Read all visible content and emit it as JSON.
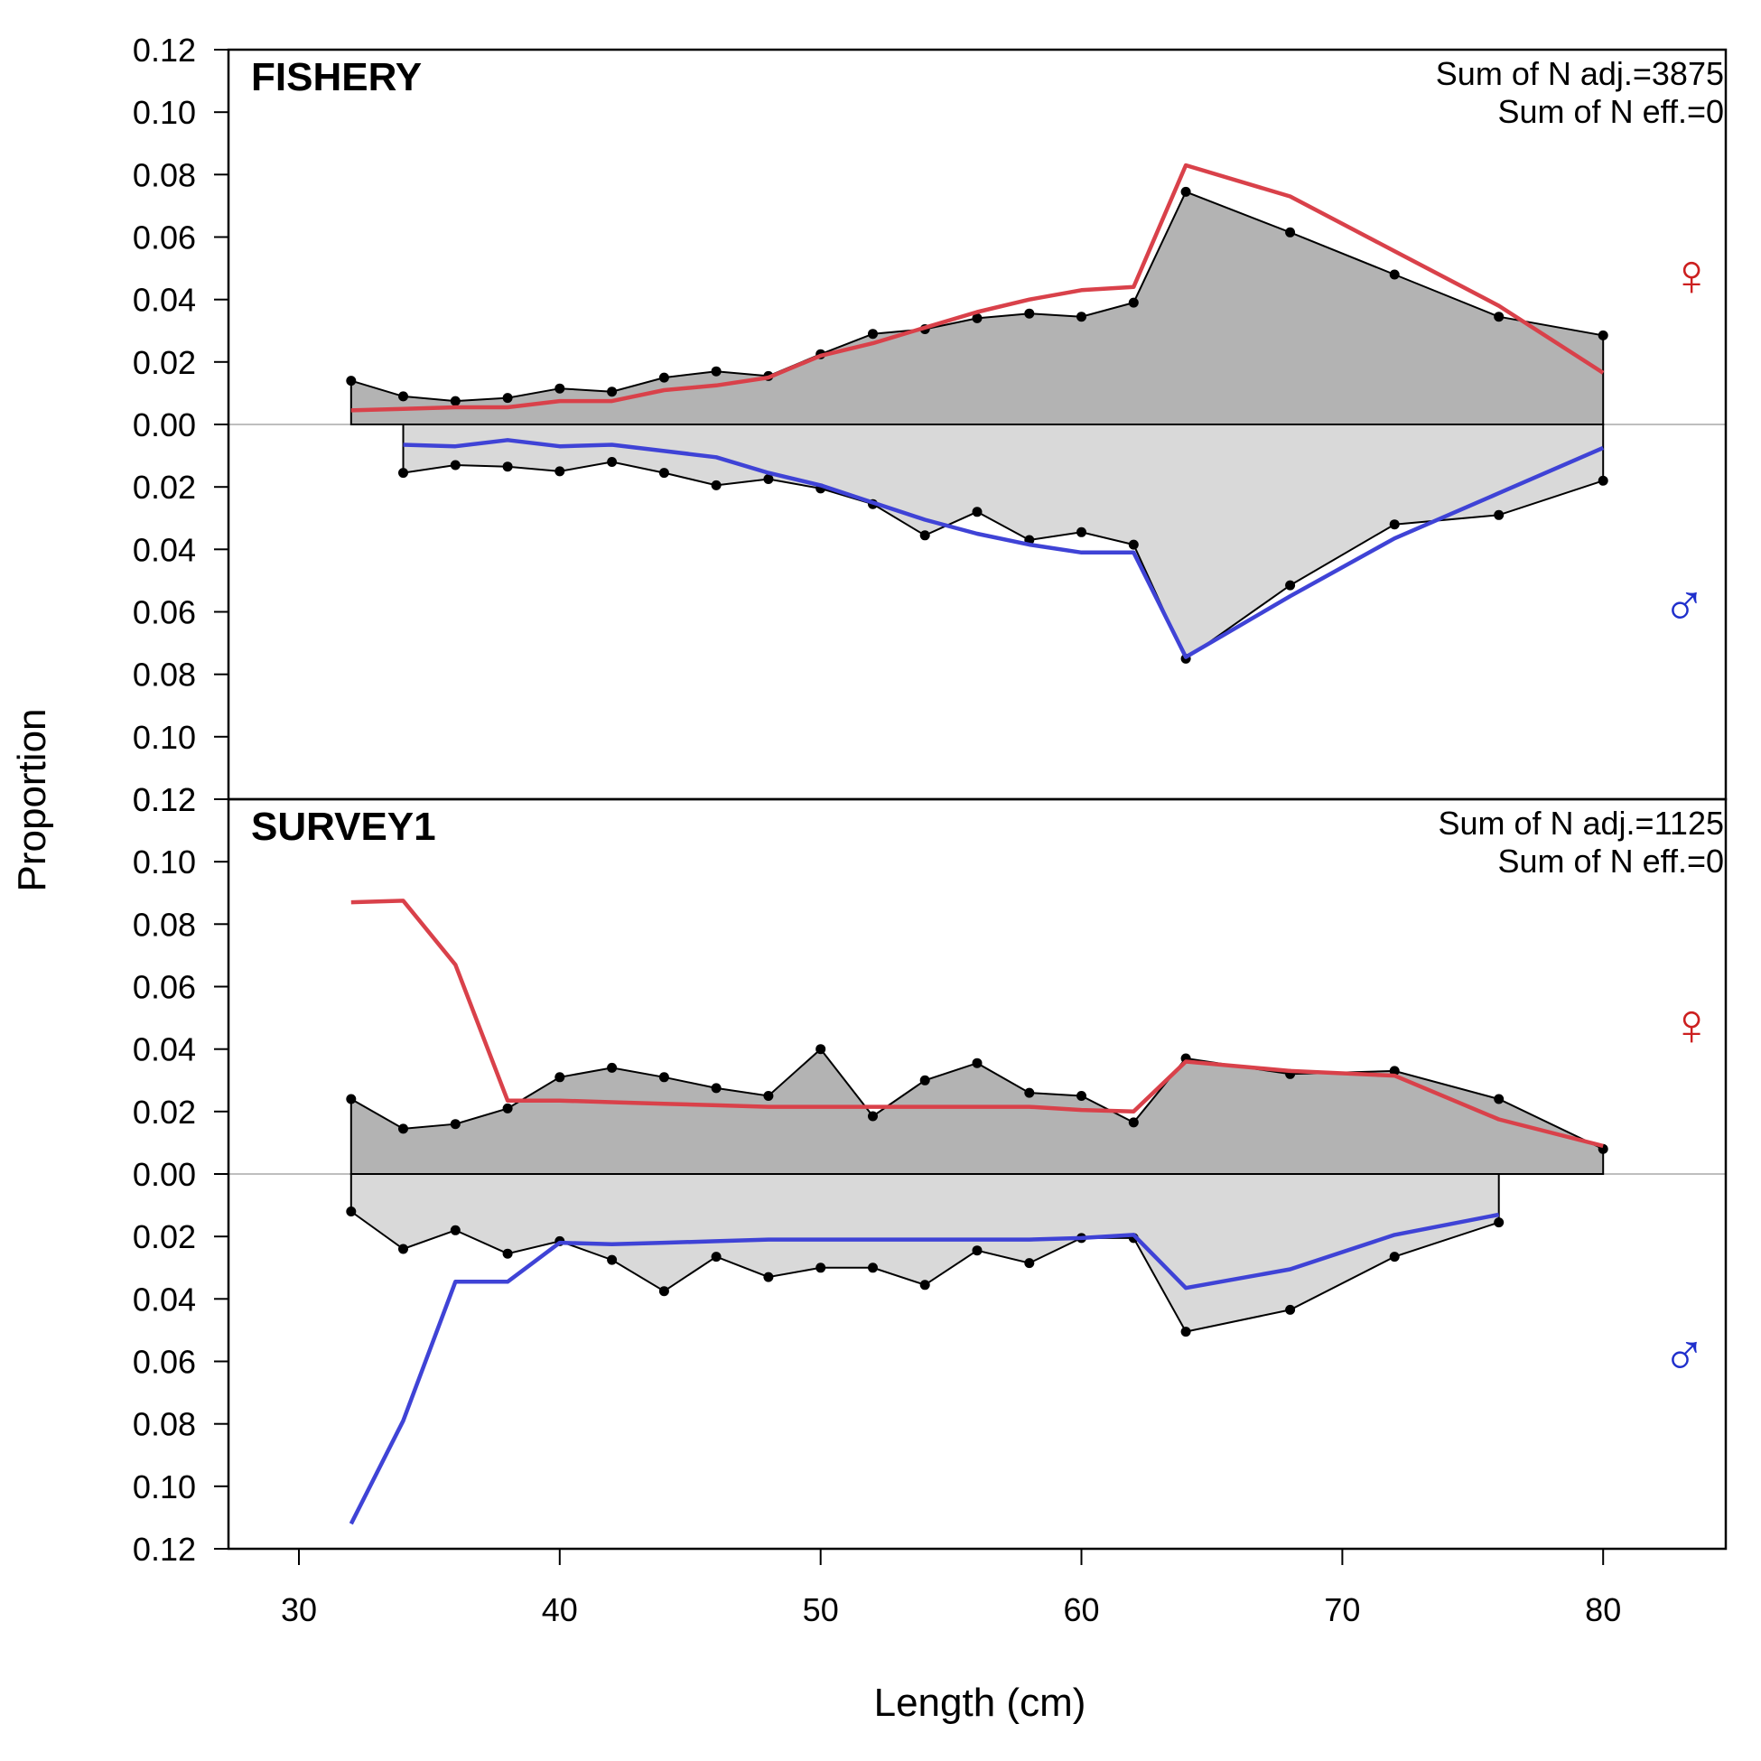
{
  "chart_data": {
    "type": "area",
    "xlabel": "Length (cm)",
    "ylabel": "Proportion",
    "xlim": [
      27.3,
      84.7
    ],
    "x_ticks": [
      30,
      40,
      50,
      60,
      70,
      80
    ],
    "y_ticks": [
      0.12,
      0.1,
      0.08,
      0.06,
      0.04,
      0.02,
      0.0,
      0.02,
      0.04,
      0.06,
      0.08,
      0.1,
      0.12
    ],
    "ylim": [
      -0.12,
      0.12
    ],
    "colors": {
      "female_observed_fill": "#b3b3b3",
      "male_observed_fill": "#d9d9d9",
      "female_expected": "#d9414a",
      "male_expected": "#3f43d6",
      "observed_line": "#000000",
      "zero_line": "#bebebe"
    },
    "female_symbol": "♀",
    "male_symbol": "♂",
    "panels": [
      {
        "title": "FISHERY",
        "note_line1": "Sum of N adj.=3875",
        "note_line2": "Sum of N eff.=0",
        "female_observed": {
          "x": [
            32,
            34,
            36,
            38,
            40,
            42,
            44,
            46,
            48,
            50,
            52,
            54,
            56,
            58,
            60,
            62,
            64,
            68,
            72,
            76,
            80
          ],
          "y": [
            0.014,
            0.009,
            0.0075,
            0.0085,
            0.0115,
            0.0105,
            0.015,
            0.017,
            0.0155,
            0.0225,
            0.029,
            0.0305,
            0.034,
            0.0355,
            0.0345,
            0.039,
            0.0745,
            0.0615,
            0.048,
            0.0345,
            0.0285
          ]
        },
        "female_expected": {
          "x": [
            32,
            34,
            36,
            38,
            40,
            42,
            44,
            46,
            48,
            50,
            52,
            54,
            56,
            58,
            60,
            62,
            64,
            68,
            72,
            76,
            80
          ],
          "y": [
            0.0045,
            0.005,
            0.0055,
            0.0055,
            0.0075,
            0.0075,
            0.011,
            0.0125,
            0.015,
            0.022,
            0.026,
            0.031,
            0.036,
            0.04,
            0.043,
            0.044,
            0.083,
            0.073,
            0.0555,
            0.038,
            0.0165
          ]
        },
        "male_observed": {
          "x": [
            34,
            36,
            38,
            40,
            42,
            44,
            46,
            48,
            50,
            52,
            54,
            56,
            58,
            60,
            62,
            64,
            68,
            72,
            76,
            80
          ],
          "y": [
            0.0155,
            0.013,
            0.0135,
            0.015,
            0.012,
            0.0155,
            0.0195,
            0.0175,
            0.0205,
            0.0255,
            0.0355,
            0.028,
            0.037,
            0.0345,
            0.0385,
            0.075,
            0.0515,
            0.032,
            0.029,
            0.018
          ]
        },
        "male_expected": {
          "x": [
            34,
            36,
            38,
            40,
            42,
            44,
            46,
            48,
            50,
            52,
            54,
            56,
            58,
            60,
            62,
            64,
            68,
            72,
            76,
            80
          ],
          "y": [
            0.0065,
            0.007,
            0.005,
            0.007,
            0.0065,
            0.0085,
            0.0105,
            0.0155,
            0.0195,
            0.025,
            0.0305,
            0.035,
            0.0385,
            0.041,
            0.041,
            0.0745,
            0.055,
            0.0365,
            0.022,
            0.0075
          ]
        }
      },
      {
        "title": "SURVEY1",
        "note_line1": "Sum of N adj.=1125",
        "note_line2": "Sum of N eff.=0",
        "female_observed": {
          "x": [
            32,
            34,
            36,
            38,
            40,
            42,
            44,
            46,
            48,
            50,
            52,
            54,
            56,
            58,
            60,
            62,
            64,
            68,
            72,
            76,
            80
          ],
          "y": [
            0.024,
            0.0145,
            0.016,
            0.021,
            0.031,
            0.034,
            0.031,
            0.0275,
            0.025,
            0.04,
            0.0185,
            0.03,
            0.0355,
            0.026,
            0.025,
            0.0165,
            0.037,
            0.032,
            0.033,
            0.024,
            0.008
          ]
        },
        "female_expected": {
          "x": [
            32,
            34,
            36,
            38,
            40,
            42,
            44,
            46,
            48,
            50,
            52,
            54,
            56,
            58,
            60,
            62,
            64,
            68,
            72,
            76,
            80
          ],
          "y": [
            0.087,
            0.0875,
            0.067,
            0.0235,
            0.0235,
            0.023,
            0.0225,
            0.022,
            0.0215,
            0.0215,
            0.0215,
            0.0215,
            0.0215,
            0.0215,
            0.0205,
            0.02,
            0.036,
            0.033,
            0.0315,
            0.0175,
            0.009
          ]
        },
        "male_observed": {
          "x": [
            32,
            34,
            36,
            38,
            40,
            42,
            44,
            46,
            48,
            50,
            52,
            54,
            56,
            58,
            60,
            62,
            64,
            68,
            72,
            76
          ],
          "y": [
            0.012,
            0.024,
            0.018,
            0.0255,
            0.0215,
            0.0275,
            0.0375,
            0.0265,
            0.033,
            0.03,
            0.03,
            0.0355,
            0.0245,
            0.0285,
            0.0205,
            0.0205,
            0.0505,
            0.0435,
            0.0265,
            0.0155
          ]
        },
        "male_expected": {
          "x": [
            32,
            34,
            36,
            38,
            40,
            42,
            44,
            46,
            48,
            50,
            52,
            54,
            56,
            58,
            60,
            62,
            64,
            68,
            72,
            76
          ],
          "y": [
            0.112,
            0.079,
            0.0345,
            0.0345,
            0.022,
            0.0225,
            0.022,
            0.0215,
            0.021,
            0.021,
            0.021,
            0.021,
            0.021,
            0.021,
            0.0205,
            0.0195,
            0.0365,
            0.0305,
            0.0195,
            0.013
          ]
        }
      }
    ]
  }
}
